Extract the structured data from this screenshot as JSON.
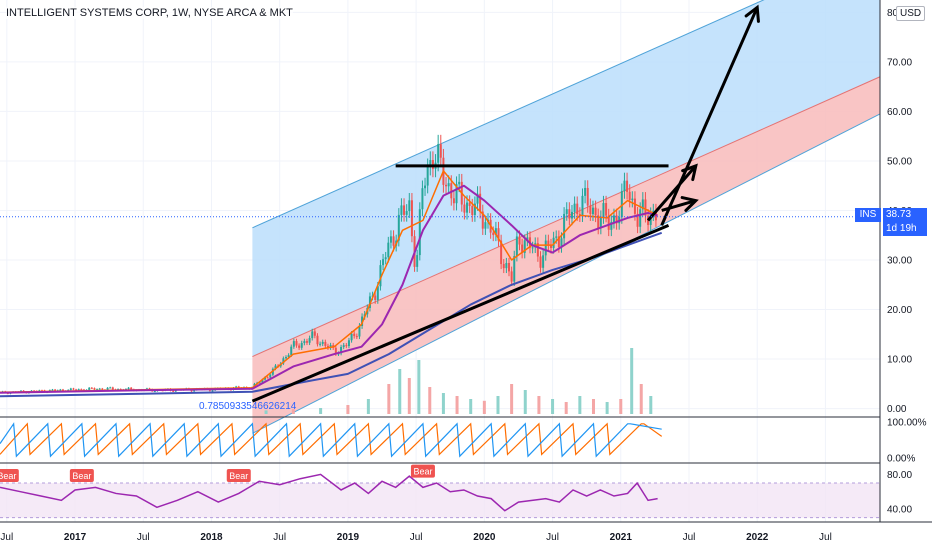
{
  "header": {
    "title": "INTELLIGENT SYSTEMS CORP, 1W, NYSE ARCA & MKT",
    "currency": "USD"
  },
  "price_tag": {
    "symbol": "INS",
    "price": "38.73",
    "countdown": "1d 19h"
  },
  "annotation_value": "0.7850933546626214",
  "colors": {
    "up": "#26a69a",
    "down": "#ef5350",
    "ma_fast": "#ff6d00",
    "ma_mid": "#9c27b0",
    "ma_slow": "#3f51b5",
    "channel_blue": "#bbdefb",
    "channel_red": "#f8bbbb",
    "rsi": "#9c27b0",
    "tag_blue": "#2962ff",
    "bear": "#ef5350"
  },
  "chart_data": [
    {
      "type": "candlestick",
      "title": "INTELLIGENT SYSTEMS CORP, 1W, NYSE ARCA & MKT",
      "x_ticks": [
        "Jul",
        "2017",
        "Jul",
        "2018",
        "Jul",
        "2019",
        "Jul",
        "2020",
        "Jul",
        "2021",
        "Jul",
        "2022",
        "Jul"
      ],
      "x_range": [
        2016.45,
        2022.9
      ],
      "y_ticks": [
        "0.00",
        "10.00",
        "20.00",
        "30.00",
        "40.00",
        "50.00",
        "60.00",
        "70.00",
        "80.00"
      ],
      "ylim": [
        -1.5,
        82.5
      ],
      "current_price": 38.73,
      "close_series": {
        "x": [
          2016.45,
          2016.8,
          2017.2,
          2017.6,
          2018.0,
          2018.3,
          2018.45,
          2018.6,
          2018.75,
          2018.9,
          2019.0,
          2019.1,
          2019.2,
          2019.3,
          2019.38,
          2019.45,
          2019.5,
          2019.55,
          2019.62,
          2019.7,
          2019.78,
          2019.85,
          2019.92,
          2020.0,
          2020.1,
          2020.2,
          2020.25,
          2020.32,
          2020.4,
          2020.5,
          2020.6,
          2020.7,
          2020.8,
          2020.9,
          2021.0,
          2021.05,
          2021.12,
          2021.2,
          2021.27
        ],
        "y": [
          3.2,
          3.6,
          4.0,
          3.7,
          3.9,
          4.3,
          7.5,
          12.5,
          14.5,
          11.5,
          13.0,
          17.5,
          24.0,
          33.0,
          38.0,
          41.0,
          28.0,
          45.0,
          52.0,
          47.0,
          43.0,
          42.0,
          40.5,
          39.0,
          33.0,
          26.0,
          35.0,
          33.0,
          31.0,
          33.0,
          38.0,
          42.0,
          40.0,
          37.5,
          40.0,
          46.0,
          38.0,
          40.0,
          38.73
        ]
      },
      "moving_averages": [
        {
          "x": [
            2016.45,
            2017.5,
            2018.3,
            2018.6,
            2018.9,
            2019.1,
            2019.25,
            2019.4,
            2019.55,
            2019.7,
            2019.85,
            2020.0,
            2020.2,
            2020.35,
            2020.5,
            2020.7,
            2020.9,
            2021.05,
            2021.2,
            2021.27
          ],
          "y": [
            3.3,
            3.8,
            4.2,
            11.0,
            12.5,
            17.0,
            27.0,
            36.0,
            38.0,
            48.0,
            43.0,
            39.0,
            30.0,
            33.0,
            33.0,
            39.0,
            38.5,
            42.0,
            40.0,
            39.0
          ]
        },
        {
          "x": [
            2016.45,
            2017.5,
            2018.3,
            2018.6,
            2018.9,
            2019.1,
            2019.25,
            2019.4,
            2019.55,
            2019.7,
            2019.85,
            2020.0,
            2020.2,
            2020.35,
            2020.5,
            2020.7,
            2020.9,
            2021.05,
            2021.2,
            2021.27
          ],
          "y": [
            3.2,
            3.7,
            4.0,
            8.5,
            11.0,
            12.5,
            17.0,
            25.0,
            36.0,
            43.0,
            45.0,
            42.0,
            37.0,
            33.0,
            31.5,
            35.0,
            37.0,
            38.5,
            39.5,
            39.0
          ]
        },
        {
          "x": [
            2016.45,
            2017.5,
            2018.3,
            2018.7,
            2019.0,
            2019.3,
            2019.6,
            2019.9,
            2020.2,
            2020.5,
            2020.8,
            2021.0,
            2021.2,
            2021.3
          ],
          "y": [
            2.5,
            3.0,
            3.4,
            5.5,
            7.0,
            11.0,
            16.0,
            21.0,
            25.0,
            28.0,
            30.5,
            32.5,
            34.5,
            35.5
          ]
        }
      ],
      "channel": {
        "x_start": 2018.3,
        "x_end": 2022.9,
        "upper_start": 36.5,
        "upper_end": 93.0,
        "mid_start": 10.5,
        "mid_end": 67.0,
        "lower_start": -5.0,
        "lower_end": 59.5
      },
      "drawings": {
        "resistance": {
          "x": [
            2019.35,
            2021.35
          ],
          "y": [
            49.0,
            49.0
          ]
        },
        "support": {
          "x": [
            2018.3,
            2021.35
          ],
          "y": [
            1.5,
            37.0
          ]
        },
        "arrows": [
          {
            "x": [
              2021.2,
              2021.55
            ],
            "y": [
              38.0,
              49.0
            ]
          },
          {
            "x": [
              2021.3,
              2021.55
            ],
            "y": [
              40.0,
              42.0
            ]
          },
          {
            "x": [
              2021.3,
              2022.0
            ],
            "y": [
              37.0,
              81.0
            ]
          }
        ]
      },
      "volume": {
        "x": [
          2018.4,
          2018.6,
          2018.8,
          2019.0,
          2019.15,
          2019.3,
          2019.38,
          2019.45,
          2019.52,
          2019.6,
          2019.7,
          2019.8,
          2019.9,
          2020.0,
          2020.1,
          2020.2,
          2020.3,
          2020.4,
          2020.5,
          2020.6,
          2020.7,
          2020.8,
          2020.9,
          2021.0,
          2021.08,
          2021.15,
          2021.22
        ],
        "y": [
          0.6,
          0.8,
          1.0,
          1.5,
          2.5,
          5.0,
          7.5,
          6.0,
          9.0,
          4.5,
          3.5,
          3.0,
          2.5,
          2.2,
          3.0,
          5.0,
          4.0,
          3.0,
          2.5,
          2.0,
          3.0,
          2.5,
          2.0,
          2.5,
          11.0,
          5.0,
          3.0
        ]
      }
    },
    {
      "type": "line",
      "y_ticks": [
        "0.00%",
        "100.00%"
      ],
      "ylim": [
        0,
        100
      ],
      "series": [
        {
          "x": [
            2016.45,
            2016.65,
            2016.67,
            2016.9,
            2016.92,
            2017.15,
            2017.17,
            2017.4,
            2017.42,
            2017.65,
            2017.67,
            2017.9,
            2017.92,
            2018.15,
            2018.17,
            2018.4,
            2018.42,
            2018.65,
            2018.67,
            2018.9,
            2018.92,
            2019.15,
            2019.17,
            2019.4,
            2019.42,
            2019.65,
            2019.67,
            2019.9,
            2019.92,
            2020.15,
            2020.17,
            2020.4,
            2020.42,
            2020.65,
            2020.67,
            2020.9,
            2020.92,
            2021.15,
            2021.17,
            2021.3
          ],
          "y": [
            10,
            95,
            10,
            95,
            10,
            95,
            10,
            95,
            10,
            95,
            10,
            95,
            10,
            95,
            10,
            95,
            10,
            95,
            10,
            95,
            10,
            95,
            10,
            95,
            10,
            95,
            10,
            95,
            10,
            95,
            10,
            95,
            10,
            95,
            10,
            95,
            10,
            95,
            95,
            60
          ]
        },
        {
          "x": [
            2016.45,
            2016.55,
            2016.57,
            2016.8,
            2016.82,
            2017.05,
            2017.07,
            2017.3,
            2017.32,
            2017.55,
            2017.57,
            2017.8,
            2017.82,
            2018.05,
            2018.07,
            2018.3,
            2018.32,
            2018.55,
            2018.57,
            2018.8,
            2018.82,
            2019.05,
            2019.07,
            2019.3,
            2019.32,
            2019.55,
            2019.57,
            2019.8,
            2019.82,
            2020.05,
            2020.07,
            2020.3,
            2020.32,
            2020.55,
            2020.57,
            2020.8,
            2020.82,
            2021.05,
            2021.07,
            2021.3
          ],
          "y": [
            40,
            95,
            5,
            95,
            5,
            95,
            5,
            95,
            5,
            95,
            5,
            95,
            5,
            95,
            5,
            95,
            5,
            95,
            5,
            95,
            5,
            95,
            5,
            95,
            5,
            95,
            5,
            95,
            5,
            95,
            5,
            95,
            5,
            95,
            5,
            95,
            5,
            95,
            95,
            80
          ]
        }
      ]
    },
    {
      "type": "line",
      "y_ticks": [
        "40.00",
        "80.00"
      ],
      "ylim": [
        25,
        92
      ],
      "band": [
        30,
        70
      ],
      "series": [
        {
          "x": [
            2016.45,
            2016.6,
            2016.75,
            2016.9,
            2017.0,
            2017.15,
            2017.3,
            2017.45,
            2017.6,
            2017.75,
            2017.9,
            2018.05,
            2018.2,
            2018.35,
            2018.5,
            2018.65,
            2018.8,
            2018.95,
            2019.05,
            2019.15,
            2019.25,
            2019.35,
            2019.45,
            2019.55,
            2019.65,
            2019.75,
            2019.85,
            2019.95,
            2020.05,
            2020.15,
            2020.25,
            2020.35,
            2020.45,
            2020.55,
            2020.65,
            2020.75,
            2020.85,
            2020.95,
            2021.05,
            2021.12,
            2021.2,
            2021.27
          ],
          "y": [
            65,
            60,
            55,
            50,
            62,
            65,
            58,
            55,
            42,
            50,
            60,
            48,
            58,
            72,
            68,
            75,
            80,
            62,
            70,
            58,
            72,
            65,
            78,
            65,
            70,
            60,
            62,
            55,
            52,
            38,
            48,
            50,
            52,
            48,
            62,
            55,
            62,
            55,
            58,
            70,
            50,
            52
          ]
        }
      ],
      "labels": [
        {
          "x": 2016.5,
          "y": 77,
          "text": "Bear"
        },
        {
          "x": 2017.05,
          "y": 77,
          "text": "Bear"
        },
        {
          "x": 2018.2,
          "y": 77,
          "text": "Bear"
        },
        {
          "x": 2019.55,
          "y": 82,
          "text": "Bear"
        }
      ]
    }
  ]
}
